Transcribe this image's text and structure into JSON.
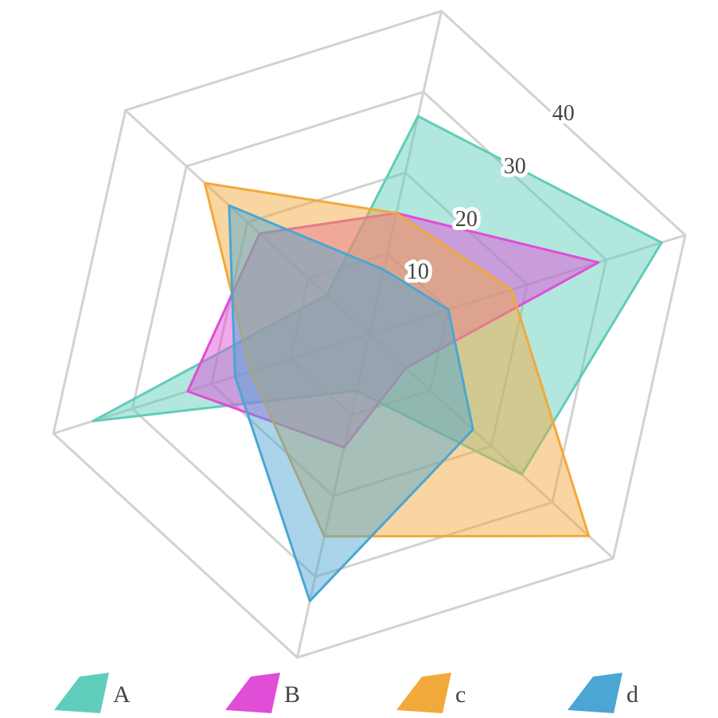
{
  "chart_data": {
    "type": "radar",
    "rlim": [
      0,
      40
    ],
    "rticks": [
      10,
      20,
      30,
      40
    ],
    "series": [
      {
        "name": "A",
        "color": "#5fcdb9",
        "values": [
          27,
          37,
          25,
          7,
          35,
          7
        ]
      },
      {
        "name": "B",
        "color": "#e04dd6",
        "values": [
          15,
          29,
          6,
          14,
          23,
          18
        ]
      },
      {
        "name": "c",
        "color": "#f2a93b",
        "values": [
          15,
          18,
          36,
          25,
          15,
          27
        ]
      },
      {
        "name": "d",
        "color": "#4ba6d3",
        "values": [
          8,
          10,
          17,
          33,
          17,
          23
        ]
      }
    ]
  }
}
